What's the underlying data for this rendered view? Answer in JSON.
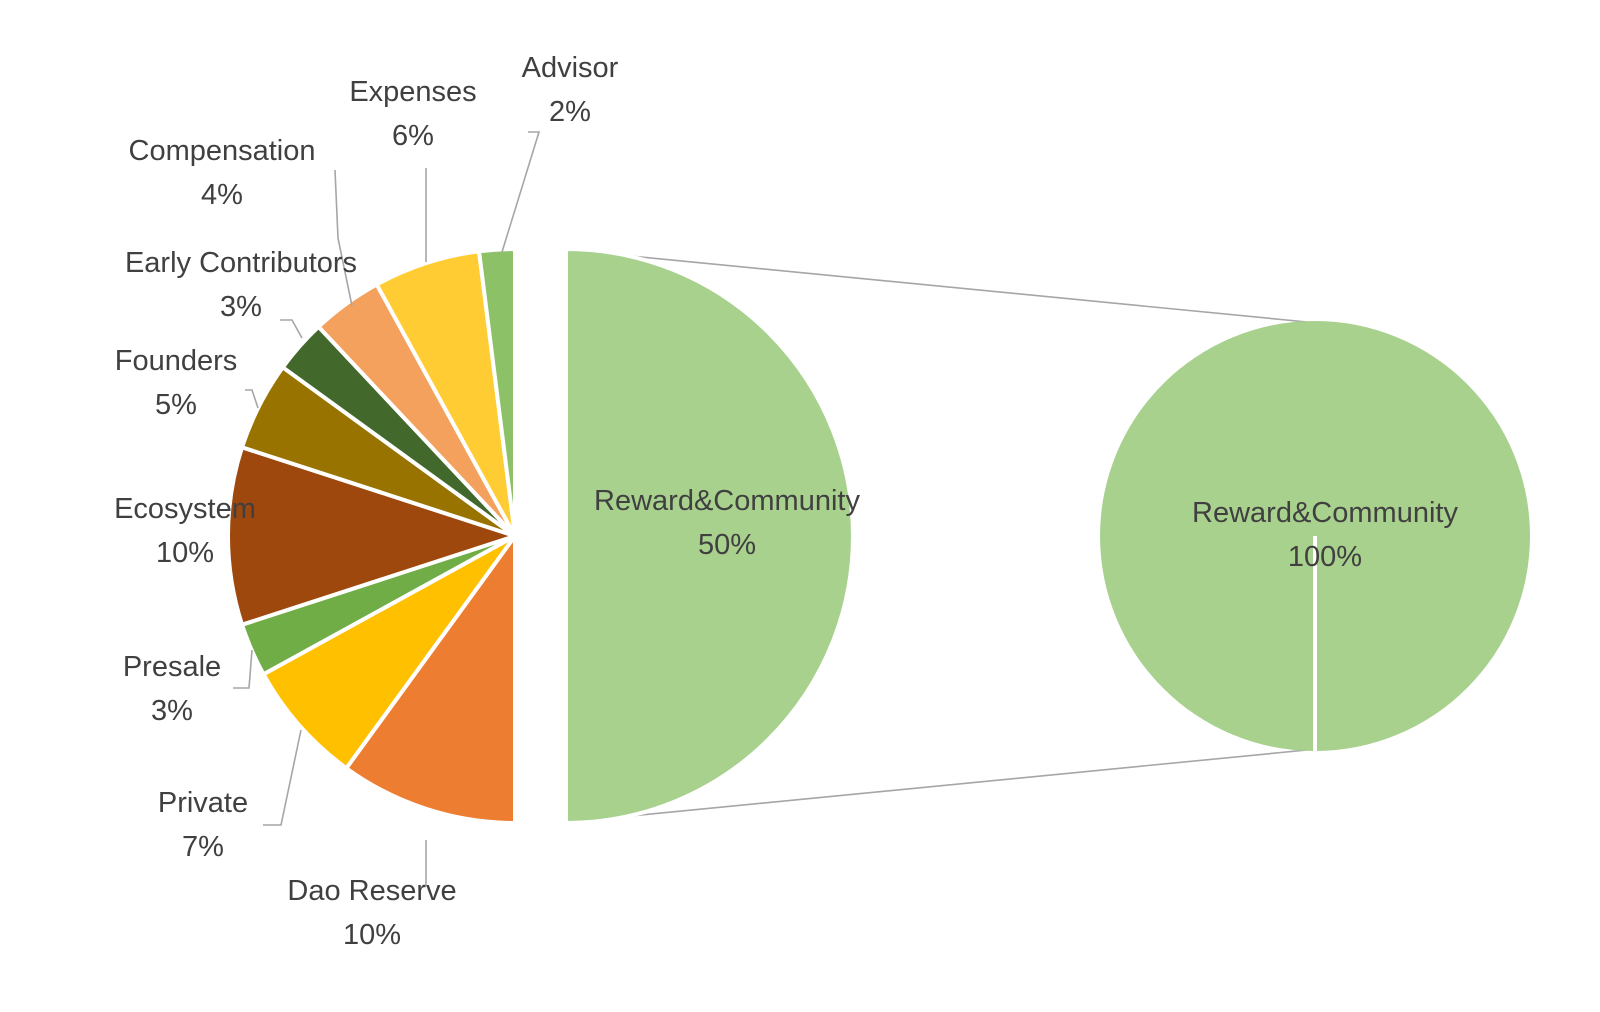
{
  "chart_data": {
    "type": "pie",
    "title": "",
    "slices": [
      {
        "name": "Reward&Community",
        "pct_label": "50%",
        "value": 50,
        "color": "#a9d18e"
      },
      {
        "name": "Dao Reserve",
        "pct_label": "10%",
        "value": 10,
        "color": "#ed7d31"
      },
      {
        "name": "Private",
        "pct_label": "7%",
        "value": 7,
        "color": "#ffc000"
      },
      {
        "name": "Presale",
        "pct_label": "3%",
        "value": 3,
        "color": "#70ad47"
      },
      {
        "name": "Ecosystem",
        "pct_label": "10%",
        "value": 10,
        "color": "#9e480e"
      },
      {
        "name": "Founders",
        "pct_label": "5%",
        "value": 5,
        "color": "#997300"
      },
      {
        "name": "Early Contributors",
        "pct_label": "3%",
        "value": 3,
        "color": "#43682b"
      },
      {
        "name": "Compensation",
        "pct_label": "4%",
        "value": 4,
        "color": "#f4a15d"
      },
      {
        "name": "Expenses",
        "pct_label": "6%",
        "value": 6,
        "color": "#ffcd33"
      },
      {
        "name": "Advisor",
        "pct_label": "2%",
        "value": 2,
        "color": "#8cc168"
      }
    ],
    "secondary": {
      "type": "pie",
      "slices": [
        {
          "name": "Reward&Community",
          "pct_label": "100%",
          "value": 100,
          "color": "#a9d18e"
        }
      ]
    }
  }
}
